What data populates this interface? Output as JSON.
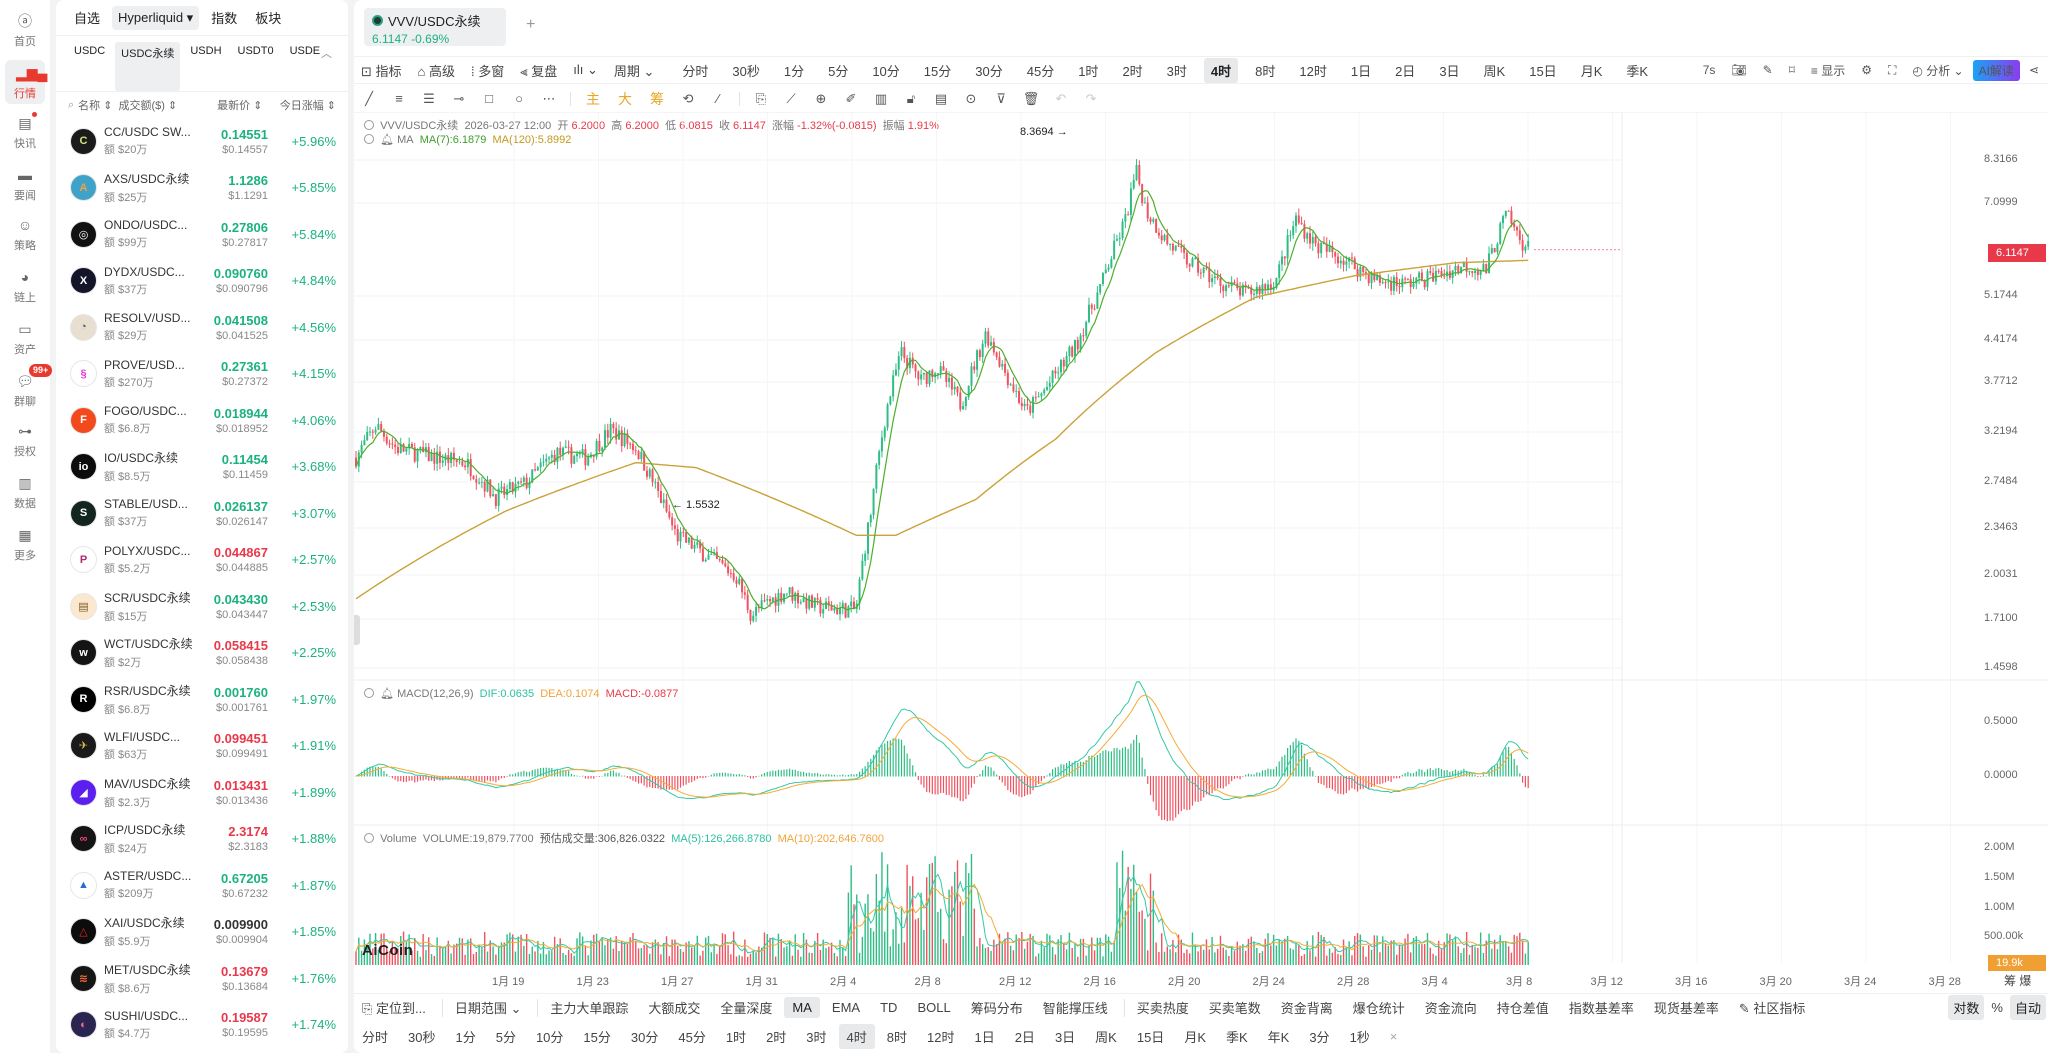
{
  "rail": {
    "items": [
      {
        "label": "首页",
        "icon": "aicoin-home-icon"
      },
      {
        "label": "行情",
        "icon": "bar-chart-icon",
        "active": true
      },
      {
        "label": "快讯",
        "icon": "news-flash-icon",
        "dot": true
      },
      {
        "label": "要闻",
        "icon": "document-icon"
      },
      {
        "label": "策略",
        "icon": "robot-icon"
      },
      {
        "label": "链上",
        "icon": "onchain-icon"
      },
      {
        "label": "资产",
        "icon": "wallet-icon"
      },
      {
        "label": "群聊",
        "icon": "chat-icon",
        "badge": "99+"
      },
      {
        "label": "授权",
        "icon": "key-icon"
      },
      {
        "label": "数据",
        "icon": "monitor-chart-icon"
      },
      {
        "label": "更多",
        "icon": "grid-more-icon"
      }
    ]
  },
  "market": {
    "tabs": [
      {
        "label": "自选"
      },
      {
        "label": "Hyperliquid ▾",
        "active": true
      },
      {
        "label": "指数"
      },
      {
        "label": "板块"
      }
    ],
    "subtabs": [
      {
        "label": "USDC"
      },
      {
        "label": "USDC永续",
        "active": true
      },
      {
        "label": "USDH"
      },
      {
        "label": "USDT0"
      },
      {
        "label": "USDE"
      }
    ],
    "collapse_glyph": "︿",
    "header": {
      "name": "名称 ⇕",
      "volume": "成交额($) ⇕",
      "price": "最新价 ⇕",
      "change": "今日涨幅 ⇕"
    },
    "rows": [
      {
        "name": "CC/USDC SW...",
        "vol": "额 $20万",
        "price": "0.14551",
        "usd": "$0.14557",
        "chg": "+5.96%",
        "dir": "up",
        "color": "#1b1b1b",
        "fg": "#d7e07a",
        "glyph": "C"
      },
      {
        "name": "AXS/USDC永续",
        "vol": "额 $25万",
        "price": "1.1286",
        "usd": "$1.1291",
        "chg": "+5.85%",
        "dir": "up",
        "color": "#3fa3c9",
        "fg": "#f1a23a",
        "glyph": "A"
      },
      {
        "name": "ONDO/USDC...",
        "vol": "额 $99万",
        "price": "0.27806",
        "usd": "$0.27817",
        "chg": "+5.84%",
        "dir": "up",
        "color": "#111",
        "fg": "#fff",
        "glyph": "◎"
      },
      {
        "name": "DYDX/USDC...",
        "vol": "额 $37万",
        "price": "0.090760",
        "usd": "$0.090796",
        "chg": "+4.84%",
        "dir": "up",
        "color": "#15152a",
        "fg": "#fff",
        "glyph": "X"
      },
      {
        "name": "RESOLV/USD...",
        "vol": "额 $29万",
        "price": "0.041508",
        "usd": "$0.041525",
        "chg": "+4.56%",
        "dir": "up",
        "color": "#e9dfd1",
        "fg": "#555",
        "glyph": "◔"
      },
      {
        "name": "PROVE/USD...",
        "vol": "额 $270万",
        "price": "0.27361",
        "usd": "$0.27372",
        "chg": "+4.15%",
        "dir": "up",
        "color": "#fff",
        "fg": "#e43ad6",
        "glyph": "§"
      },
      {
        "name": "FOGO/USDC...",
        "vol": "额 $6.8万",
        "price": "0.018944",
        "usd": "$0.018952",
        "chg": "+4.06%",
        "dir": "up",
        "color": "#f34a1d",
        "fg": "#fff",
        "glyph": "F"
      },
      {
        "name": "IO/USDC永续",
        "vol": "额 $8.5万",
        "price": "0.11454",
        "usd": "$0.11459",
        "chg": "+3.68%",
        "dir": "up",
        "color": "#0c0c0c",
        "fg": "#fff",
        "glyph": "io"
      },
      {
        "name": "STABLE/USD...",
        "vol": "额 $37万",
        "price": "0.026137",
        "usd": "$0.026147",
        "chg": "+3.07%",
        "dir": "up",
        "color": "#12261f",
        "fg": "#fff",
        "glyph": "S"
      },
      {
        "name": "POLYX/USDC...",
        "vol": "额 $5.2万",
        "price": "0.044867",
        "usd": "$0.044885",
        "chg": "+2.57%",
        "dir": "down",
        "color": "#fff",
        "fg": "#b0286f",
        "glyph": "P"
      },
      {
        "name": "SCR/USDC永续",
        "vol": "额 $15万",
        "price": "0.043430",
        "usd": "$0.043447",
        "chg": "+2.53%",
        "dir": "up",
        "color": "#fbe8cf",
        "fg": "#7a5a2c",
        "glyph": "▤"
      },
      {
        "name": "WCT/USDC永续",
        "vol": "额 $2万",
        "price": "0.058415",
        "usd": "$0.058438",
        "chg": "+2.25%",
        "dir": "down",
        "color": "#141414",
        "fg": "#fff",
        "glyph": "w"
      },
      {
        "name": "RSR/USDC永续",
        "vol": "额 $6.8万",
        "price": "0.001760",
        "usd": "$0.001761",
        "chg": "+1.97%",
        "dir": "up",
        "color": "#000",
        "fg": "#fff",
        "glyph": "R"
      },
      {
        "name": "WLFI/USDC...",
        "vol": "额 $63万",
        "price": "0.099451",
        "usd": "$0.099491",
        "chg": "+1.91%",
        "dir": "down",
        "color": "#1a1a1a",
        "fg": "#d9b24a",
        "glyph": "✈"
      },
      {
        "name": "MAV/USDC永续",
        "vol": "额 $2.3万",
        "price": "0.013431",
        "usd": "$0.013436",
        "chg": "+1.89%",
        "dir": "down",
        "color": "#5b1ff0",
        "fg": "#fff",
        "glyph": "◢"
      },
      {
        "name": "ICP/USDC永续",
        "vol": "额 $24万",
        "price": "2.3174",
        "usd": "$2.3183",
        "chg": "+1.88%",
        "dir": "down",
        "color": "#141414",
        "fg": "#e7457a",
        "glyph": "∞"
      },
      {
        "name": "ASTER/USDC...",
        "vol": "额 $209万",
        "price": "0.67205",
        "usd": "$0.67232",
        "chg": "+1.87%",
        "dir": "up",
        "color": "#fff",
        "fg": "#1f6fd6",
        "glyph": "▲"
      },
      {
        "name": "XAI/USDC永续",
        "vol": "额 $5.9万",
        "price": "0.009900",
        "usd": "$0.009904",
        "chg": "+1.85%",
        "dir": "flat",
        "color": "#0c0c0c",
        "fg": "#e8262b",
        "glyph": "△"
      },
      {
        "name": "MET/USDC永续",
        "vol": "额 $8.6万",
        "price": "0.13679",
        "usd": "$0.13684",
        "chg": "+1.76%",
        "dir": "down",
        "color": "#151515",
        "fg": "#f06b3a",
        "glyph": "≋"
      },
      {
        "name": "SUSHI/USDC...",
        "vol": "额 $4.7万",
        "price": "0.19587",
        "usd": "$0.19595",
        "chg": "+1.74%",
        "dir": "down",
        "color": "#2a2550",
        "fg": "#f06aa8",
        "glyph": "◐"
      }
    ]
  },
  "chart": {
    "symbol_tab": {
      "name": "VVV/USDC永续",
      "quote": "6.1147  -0.69%"
    },
    "add_tab": "+",
    "toolbar1": {
      "left": [
        "指标",
        "高级",
        "多窗",
        "复盘",
        "ılı ⌄",
        "周期 ⌄"
      ],
      "periods": [
        "分时",
        "30秒",
        "1分",
        "5分",
        "10分",
        "15分",
        "30分",
        "45分",
        "1时",
        "2时",
        "3时",
        "4时",
        "8时",
        "12时",
        "1日",
        "2日",
        "3日",
        "周K",
        "15日",
        "月K",
        "季K"
      ],
      "active_period": "4时",
      "right": {
        "refresh": "7s",
        "display": "显示",
        "analysis": "分析 ⌄",
        "ai": "AI解读"
      }
    },
    "toolbar2": {
      "draw_tools": [
        "trend-line",
        "parallel-channel",
        "horizontal-lines",
        "horizontal-ray",
        "rectangle",
        "ellipse",
        "more"
      ],
      "yellow": [
        "主",
        "大",
        "筹"
      ]
    },
    "ohlc": {
      "symbol": "VVV/USDC永续",
      "time": "2026-03-27 12:00",
      "open_label": "开",
      "open": "6.2000",
      "high_label": "高",
      "high": "6.2000",
      "low_label": "低",
      "low": "6.0815",
      "close_label": "收",
      "close": "6.1147",
      "chg_label": "涨幅",
      "chg": "-1.32%(-0.0815)",
      "amp_label": "振幅",
      "amp": "1.91%"
    },
    "ma": {
      "label": "MA",
      "ma7": "MA(7):6.1879",
      "ma120": "MA(120):5.8992"
    },
    "macd": {
      "label": "MACD(12,26,9)",
      "dif": "DIF:0.0635",
      "dea": "DEA:0.1074",
      "macd": "MACD:-0.0877"
    },
    "volume": {
      "label": "Volume",
      "vol": "VOLUME:19,879.7700",
      "est": "预估成交量:306,826.0322",
      "ma5": "MA(5):126,266.8780",
      "ma10": "MA(10):202,646.7600"
    },
    "price_axis": [
      "8.3166",
      "7.0999",
      "5.1744",
      "4.4174",
      "3.7712",
      "3.2194",
      "2.7484",
      "2.3463",
      "2.0031",
      "1.7100",
      "1.4598"
    ],
    "last_price": "6.1147",
    "macd_axis": [
      "0.5000",
      "0.0000"
    ],
    "vol_axis": [
      "2.00M",
      "1.50M",
      "1.00M",
      "500.00k"
    ],
    "vol_last": "19.9k",
    "high_mark": "8.3694 →",
    "low_mark": "← 1.5532",
    "x_axis": [
      "1月 19",
      "1月 23",
      "1月 27",
      "1月 31",
      "2月 4",
      "2月 8",
      "2月 12",
      "2月 16",
      "2月 20",
      "2月 24",
      "2月 28",
      "3月 4",
      "3月 8",
      "3月 12",
      "3月 16",
      "3月 20",
      "3月 24",
      "3月 28"
    ],
    "chou_bao": "筹 爆",
    "logo": "AiCoin",
    "toolbar3": {
      "locate": "定位到...",
      "range": "日期范围 ⌄",
      "items": [
        "主力大单跟踪",
        "大额成交",
        "全量深度",
        "MA",
        "EMA",
        "TD",
        "BOLL",
        "筹码分布",
        "智能撑压线",
        "买卖热度",
        "买卖笔数",
        "资金背离",
        "爆仓统计",
        "资金流向",
        "持仓差值",
        "指数基差率",
        "现货基差率"
      ],
      "active": "MA",
      "community": "社区指标",
      "log": "对数",
      "pct": "%",
      "auto": "自动"
    },
    "toolbar4": {
      "periods": [
        "分时",
        "30秒",
        "1分",
        "5分",
        "10分",
        "15分",
        "30分",
        "45分",
        "1时",
        "2时",
        "3时",
        "4时",
        "8时",
        "12时",
        "1日",
        "2日",
        "3日",
        "周K",
        "15日",
        "月K",
        "季K",
        "年K",
        "3分",
        "1秒"
      ],
      "active": "4时",
      "close": "×"
    },
    "colors": {
      "up": "#2ebd85",
      "down": "#f0525f",
      "ma7": "#4caf2c",
      "ma120": "#c9a238",
      "dif": "#35c9a6",
      "dea": "#f5ac34"
    }
  }
}
